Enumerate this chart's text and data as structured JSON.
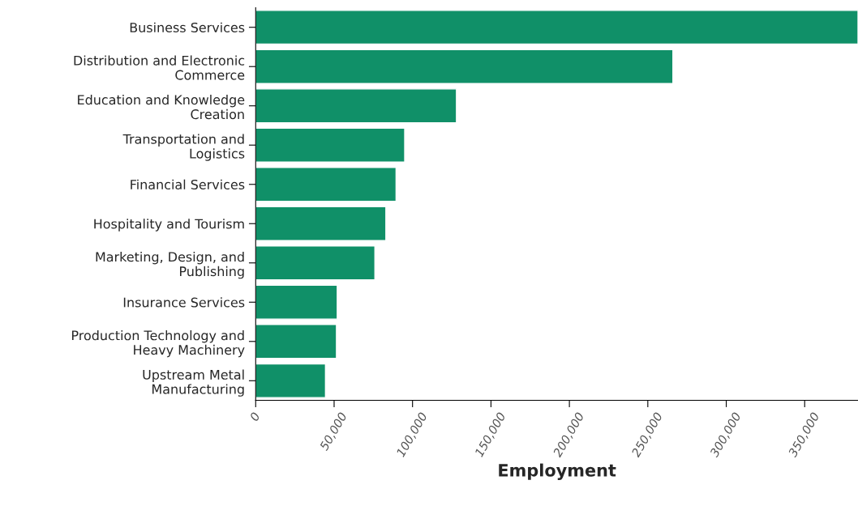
{
  "chart_data": {
    "type": "bar",
    "orientation": "horizontal",
    "xlabel": "Employment",
    "categories": [
      "Business Services",
      "Distribution and Electronic\nCommerce",
      "Education and Knowledge\nCreation",
      "Transportation and\nLogistics",
      "Financial Services",
      "Hospitality and Tourism",
      "Marketing, Design, and\nPublishing",
      "Insurance Services",
      "Production Technology and\nHeavy Machinery",
      "Upstream Metal\nManufacturing"
    ],
    "values": [
      384000,
      266000,
      128000,
      95000,
      89500,
      83000,
      76000,
      52000,
      51500,
      44500
    ],
    "color": "#109068",
    "xlim": [
      0,
      384000
    ],
    "xticks": [
      0,
      {
        "value": 50000,
        "label": "50,000"
      },
      {
        "value": 100000,
        "label": "100,000"
      },
      {
        "value": 150000,
        "label": "150,000"
      },
      {
        "value": 200000,
        "label": "200,000"
      },
      {
        "value": 250000,
        "label": "250,000"
      },
      {
        "value": 300000,
        "label": "300,000"
      },
      {
        "value": 350000,
        "label": "350,000"
      }
    ],
    "grid": false,
    "legend": false
  }
}
